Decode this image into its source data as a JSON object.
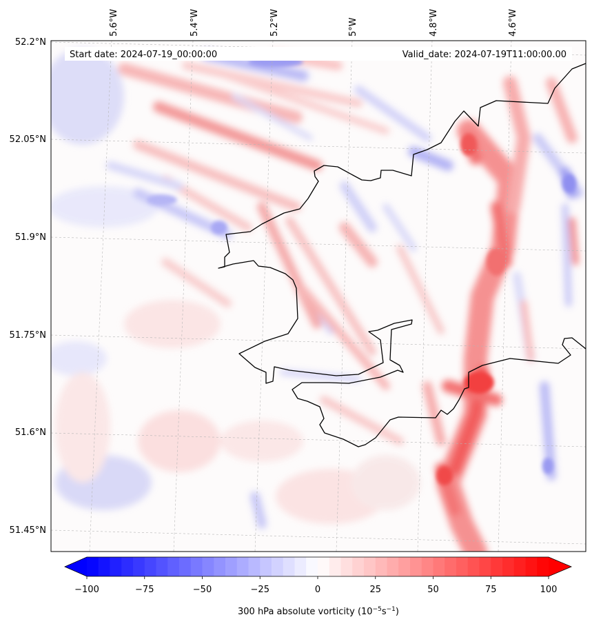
{
  "map": {
    "header": {
      "start_label": "Start date: 2024-07-19_00:00:00",
      "valid_label": "Valid_date: 2024-07-19T11:00:00.00"
    },
    "longitude_ticks": [
      "5.6°W",
      "5.4°W",
      "5.2°W",
      "5°W",
      "4.8°W",
      "4.6°W"
    ],
    "latitude_ticks": [
      "52.2°N",
      "52.05°N",
      "51.9°N",
      "51.75°N",
      "51.6°N",
      "51.45°N"
    ],
    "field": {
      "variable": "300 hPa absolute vorticity",
      "colormap": "bwr",
      "min": -100,
      "max": 100,
      "extend": "both"
    },
    "coastline_color": "#000000"
  },
  "colorbar": {
    "ticks": [
      -100,
      -75,
      -50,
      -25,
      0,
      25,
      50,
      75,
      100
    ],
    "tick_labels": [
      "−100",
      "−75",
      "−50",
      "−25",
      "0",
      "25",
      "50",
      "75",
      "100"
    ],
    "label_main": "300 hPa absolute vorticity (10",
    "label_exp1": "−5",
    "label_mid": "s",
    "label_exp2": "−1",
    "label_end": ")",
    "low_color": "#0000ff",
    "mid_color": "#ffffff",
    "high_color": "#ff0000"
  }
}
